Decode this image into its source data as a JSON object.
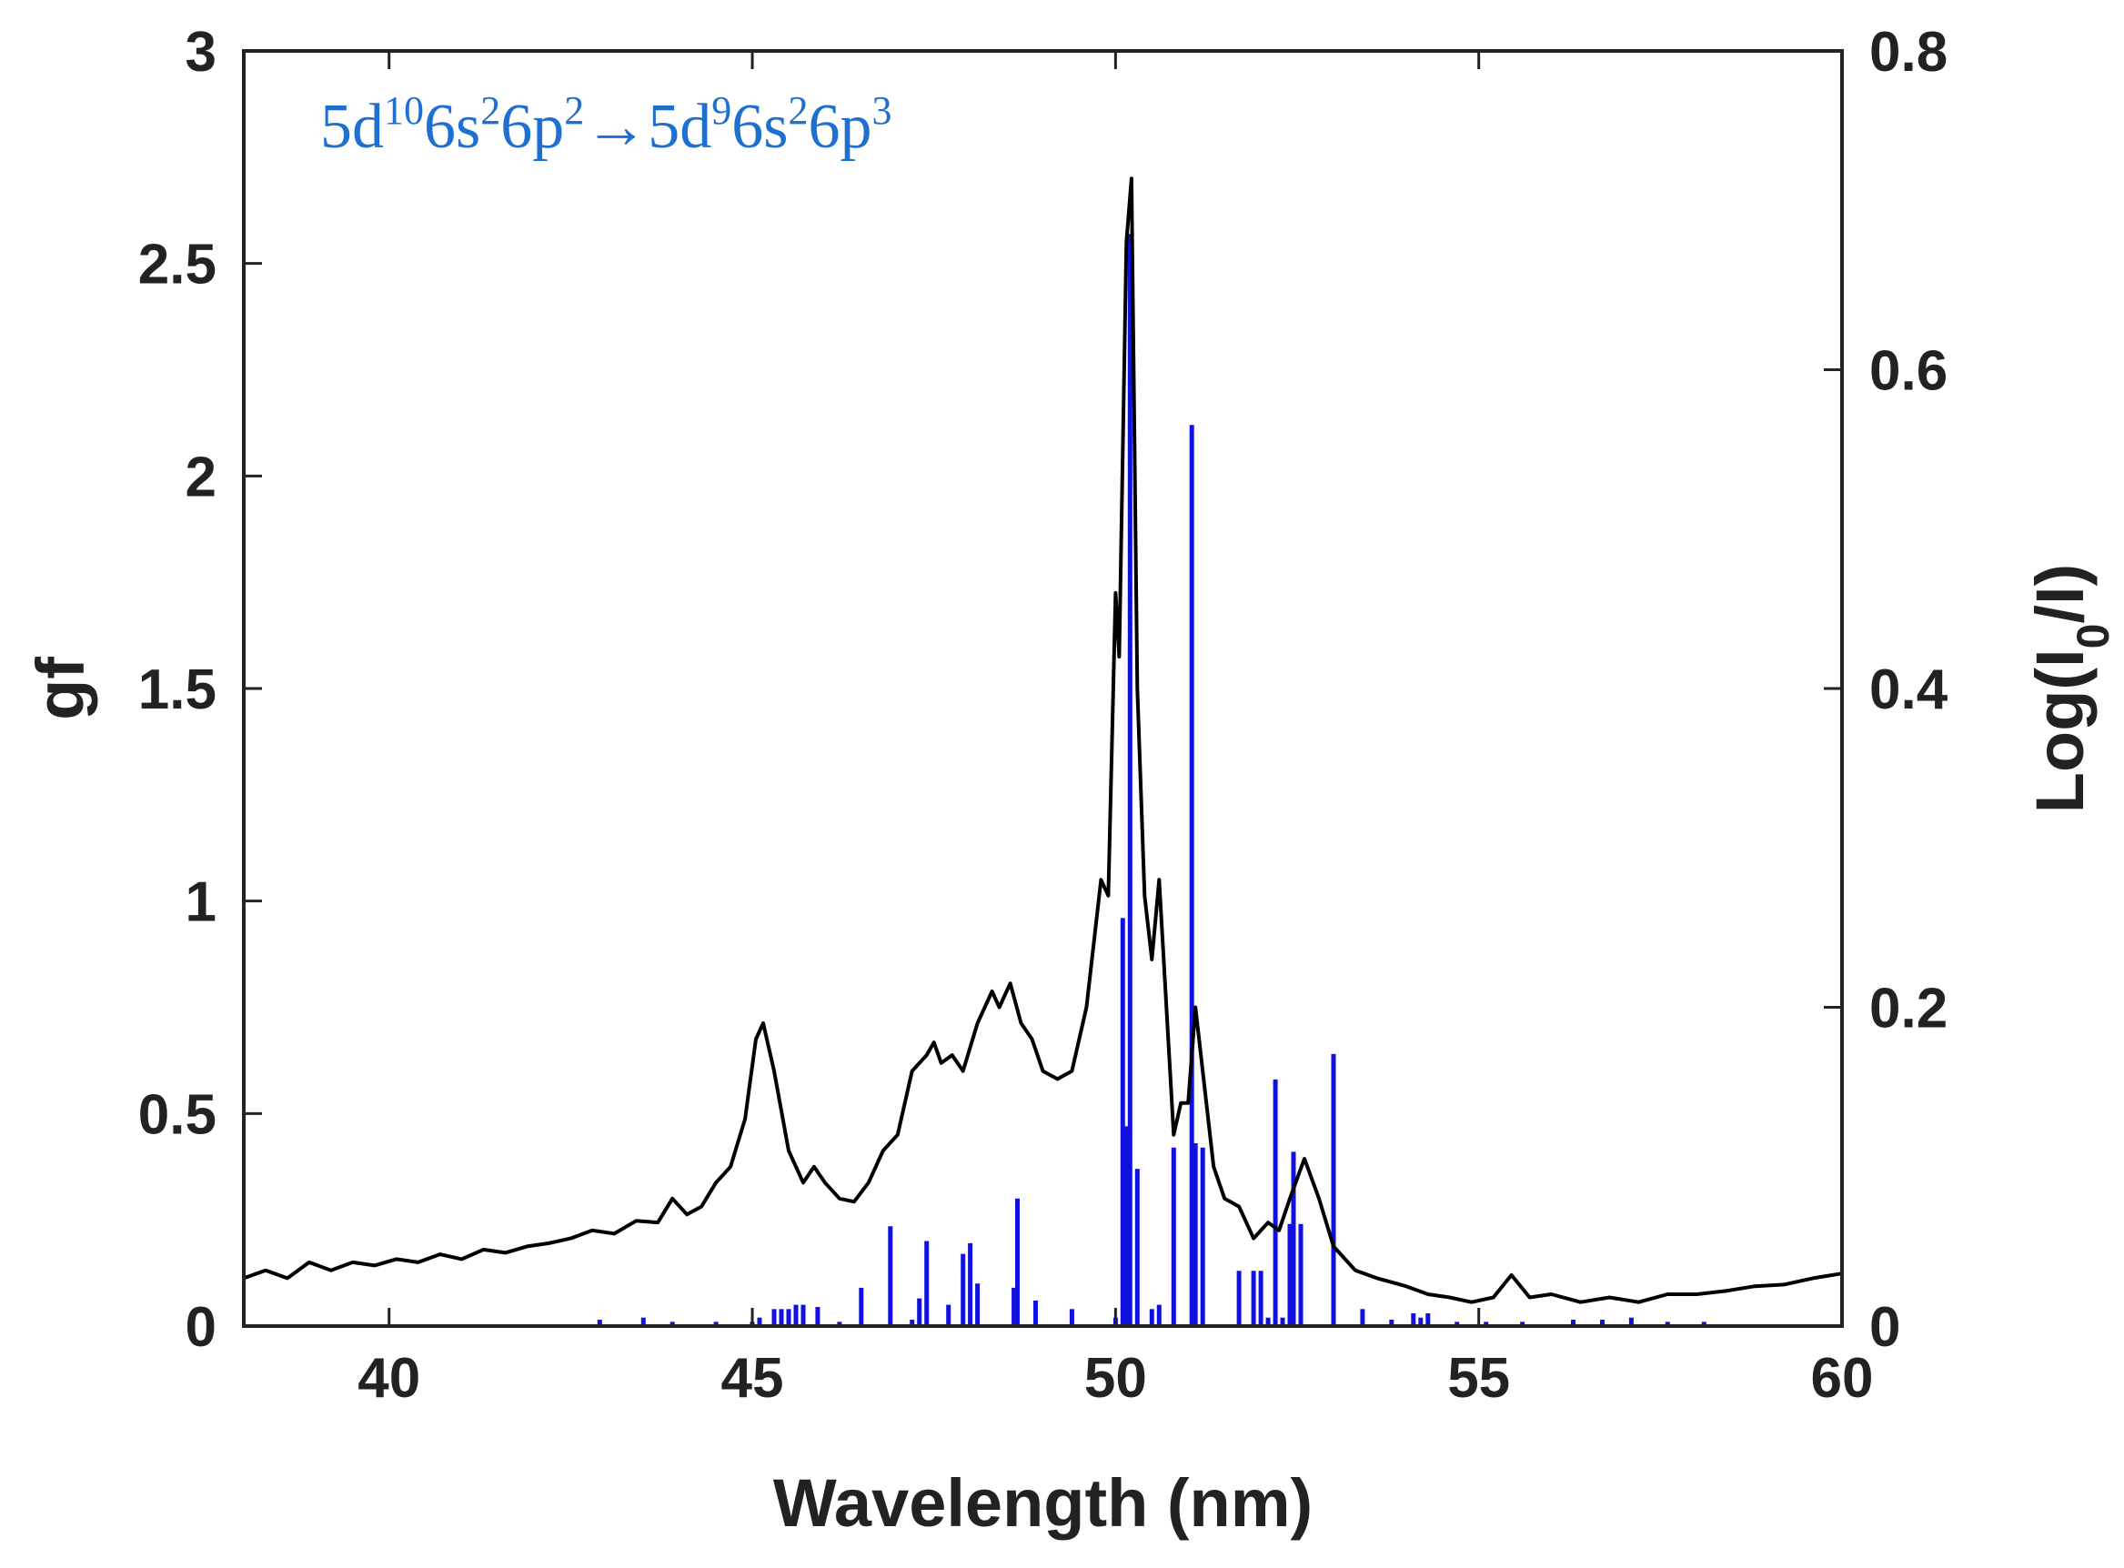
{
  "chart_data": {
    "type": "line",
    "title": "",
    "annotation": {
      "parts": [
        {
          "text": "5d",
          "sup": false
        },
        {
          "text": "10",
          "sup": true
        },
        {
          "text": "6s",
          "sup": false
        },
        {
          "text": "2",
          "sup": true
        },
        {
          "text": "6p",
          "sup": false
        },
        {
          "text": "2",
          "sup": true
        },
        {
          "text": "→5d",
          "sup": false
        },
        {
          "text": "9",
          "sup": true
        },
        {
          "text": "6s",
          "sup": false
        },
        {
          "text": "2",
          "sup": true
        },
        {
          "text": "6p",
          "sup": false
        },
        {
          "text": "3",
          "sup": true
        }
      ],
      "color": "#1f6fd0"
    },
    "xlabel": "Wavelength (nm)",
    "ylabel_left": "gf",
    "ylabel_right": {
      "base": "Log(I",
      "sub": "0",
      "tail": "/I)"
    },
    "xlim": [
      38,
      60
    ],
    "ylim_left": [
      0,
      3
    ],
    "ylim_right": [
      0,
      0.8
    ],
    "xticks": [
      40,
      45,
      50,
      55,
      60
    ],
    "yticks_left": [
      "0",
      "0.5",
      "1",
      "1.5",
      "2",
      "2.5",
      "3"
    ],
    "yticks_right": [
      "0",
      "0.2",
      "0.4",
      "0.6",
      "0.8"
    ],
    "colors": {
      "stick": "#1010e0",
      "line": "#000000",
      "axis": "#222222"
    },
    "series": [
      {
        "name": "gf",
        "axis": "left",
        "style": "stick",
        "points": [
          [
            42.9,
            0.015
          ],
          [
            43.5,
            0.02
          ],
          [
            43.9,
            0.01
          ],
          [
            44.5,
            0.01
          ],
          [
            45.0,
            0.01
          ],
          [
            45.1,
            0.02
          ],
          [
            45.3,
            0.04
          ],
          [
            45.4,
            0.04
          ],
          [
            45.5,
            0.04
          ],
          [
            45.6,
            0.05
          ],
          [
            45.7,
            0.05
          ],
          [
            45.9,
            0.045
          ],
          [
            46.2,
            0.01
          ],
          [
            46.5,
            0.09
          ],
          [
            46.9,
            0.235
          ],
          [
            47.2,
            0.015
          ],
          [
            47.3,
            0.065
          ],
          [
            47.4,
            0.2
          ],
          [
            47.7,
            0.05
          ],
          [
            47.9,
            0.17
          ],
          [
            48.0,
            0.195
          ],
          [
            48.1,
            0.1
          ],
          [
            48.6,
            0.09
          ],
          [
            48.65,
            0.3
          ],
          [
            48.9,
            0.06
          ],
          [
            49.4,
            0.04
          ],
          [
            50.0,
            0.02
          ],
          [
            50.1,
            0.96
          ],
          [
            50.15,
            0.47
          ],
          [
            50.2,
            2.57
          ],
          [
            50.3,
            0.37
          ],
          [
            50.5,
            0.04
          ],
          [
            50.6,
            0.05
          ],
          [
            50.8,
            0.42
          ],
          [
            51.05,
            2.12
          ],
          [
            51.1,
            0.43
          ],
          [
            51.2,
            0.42
          ],
          [
            51.7,
            0.13
          ],
          [
            51.9,
            0.13
          ],
          [
            52.0,
            0.13
          ],
          [
            52.1,
            0.02
          ],
          [
            52.2,
            0.58
          ],
          [
            52.3,
            0.02
          ],
          [
            52.4,
            0.24
          ],
          [
            52.45,
            0.41
          ],
          [
            52.55,
            0.24
          ],
          [
            53.0,
            0.64
          ],
          [
            53.4,
            0.04
          ],
          [
            53.8,
            0.015
          ],
          [
            54.1,
            0.03
          ],
          [
            54.2,
            0.02
          ],
          [
            54.3,
            0.03
          ],
          [
            54.7,
            0.01
          ],
          [
            55.1,
            0.01
          ],
          [
            55.6,
            0.01
          ],
          [
            56.3,
            0.015
          ],
          [
            56.7,
            0.015
          ],
          [
            57.1,
            0.02
          ],
          [
            57.6,
            0.01
          ],
          [
            58.1,
            0.01
          ]
        ]
      },
      {
        "name": "Log(I0/I)",
        "axis": "right",
        "style": "line",
        "points": [
          [
            38.0,
            0.03
          ],
          [
            38.3,
            0.035
          ],
          [
            38.6,
            0.03
          ],
          [
            38.9,
            0.04
          ],
          [
            39.2,
            0.035
          ],
          [
            39.5,
            0.04
          ],
          [
            39.8,
            0.038
          ],
          [
            40.1,
            0.042
          ],
          [
            40.4,
            0.04
          ],
          [
            40.7,
            0.045
          ],
          [
            41.0,
            0.042
          ],
          [
            41.3,
            0.048
          ],
          [
            41.6,
            0.046
          ],
          [
            41.9,
            0.05
          ],
          [
            42.2,
            0.052
          ],
          [
            42.5,
            0.055
          ],
          [
            42.8,
            0.06
          ],
          [
            43.1,
            0.058
          ],
          [
            43.4,
            0.066
          ],
          [
            43.7,
            0.065
          ],
          [
            43.9,
            0.08
          ],
          [
            44.1,
            0.07
          ],
          [
            44.3,
            0.075
          ],
          [
            44.5,
            0.09
          ],
          [
            44.7,
            0.1
          ],
          [
            44.9,
            0.13
          ],
          [
            45.05,
            0.18
          ],
          [
            45.15,
            0.19
          ],
          [
            45.3,
            0.16
          ],
          [
            45.5,
            0.11
          ],
          [
            45.7,
            0.09
          ],
          [
            45.85,
            0.1
          ],
          [
            46.0,
            0.09
          ],
          [
            46.2,
            0.08
          ],
          [
            46.4,
            0.078
          ],
          [
            46.6,
            0.09
          ],
          [
            46.8,
            0.11
          ],
          [
            47.0,
            0.12
          ],
          [
            47.2,
            0.16
          ],
          [
            47.4,
            0.17
          ],
          [
            47.5,
            0.178
          ],
          [
            47.6,
            0.165
          ],
          [
            47.75,
            0.17
          ],
          [
            47.9,
            0.16
          ],
          [
            48.1,
            0.19
          ],
          [
            48.3,
            0.21
          ],
          [
            48.4,
            0.2
          ],
          [
            48.55,
            0.215
          ],
          [
            48.7,
            0.19
          ],
          [
            48.85,
            0.18
          ],
          [
            49.0,
            0.16
          ],
          [
            49.2,
            0.155
          ],
          [
            49.4,
            0.16
          ],
          [
            49.6,
            0.2
          ],
          [
            49.8,
            0.28
          ],
          [
            49.9,
            0.27
          ],
          [
            50.0,
            0.46
          ],
          [
            50.05,
            0.42
          ],
          [
            50.15,
            0.68
          ],
          [
            50.22,
            0.72
          ],
          [
            50.3,
            0.4
          ],
          [
            50.4,
            0.27
          ],
          [
            50.5,
            0.23
          ],
          [
            50.6,
            0.28
          ],
          [
            50.7,
            0.2
          ],
          [
            50.8,
            0.12
          ],
          [
            50.9,
            0.14
          ],
          [
            51.0,
            0.14
          ],
          [
            51.1,
            0.2
          ],
          [
            51.2,
            0.16
          ],
          [
            51.35,
            0.1
          ],
          [
            51.5,
            0.08
          ],
          [
            51.7,
            0.075
          ],
          [
            51.9,
            0.055
          ],
          [
            52.1,
            0.065
          ],
          [
            52.25,
            0.06
          ],
          [
            52.4,
            0.08
          ],
          [
            52.6,
            0.105
          ],
          [
            52.8,
            0.08
          ],
          [
            53.0,
            0.05
          ],
          [
            53.3,
            0.035
          ],
          [
            53.6,
            0.03
          ],
          [
            54.0,
            0.025
          ],
          [
            54.3,
            0.02
          ],
          [
            54.6,
            0.018
          ],
          [
            54.9,
            0.015
          ],
          [
            55.2,
            0.018
          ],
          [
            55.45,
            0.032
          ],
          [
            55.7,
            0.018
          ],
          [
            56.0,
            0.02
          ],
          [
            56.4,
            0.015
          ],
          [
            56.8,
            0.018
          ],
          [
            57.2,
            0.015
          ],
          [
            57.6,
            0.02
          ],
          [
            58.0,
            0.02
          ],
          [
            58.4,
            0.022
          ],
          [
            58.8,
            0.025
          ],
          [
            59.2,
            0.026
          ],
          [
            59.6,
            0.03
          ],
          [
            60.0,
            0.033
          ]
        ]
      }
    ]
  }
}
